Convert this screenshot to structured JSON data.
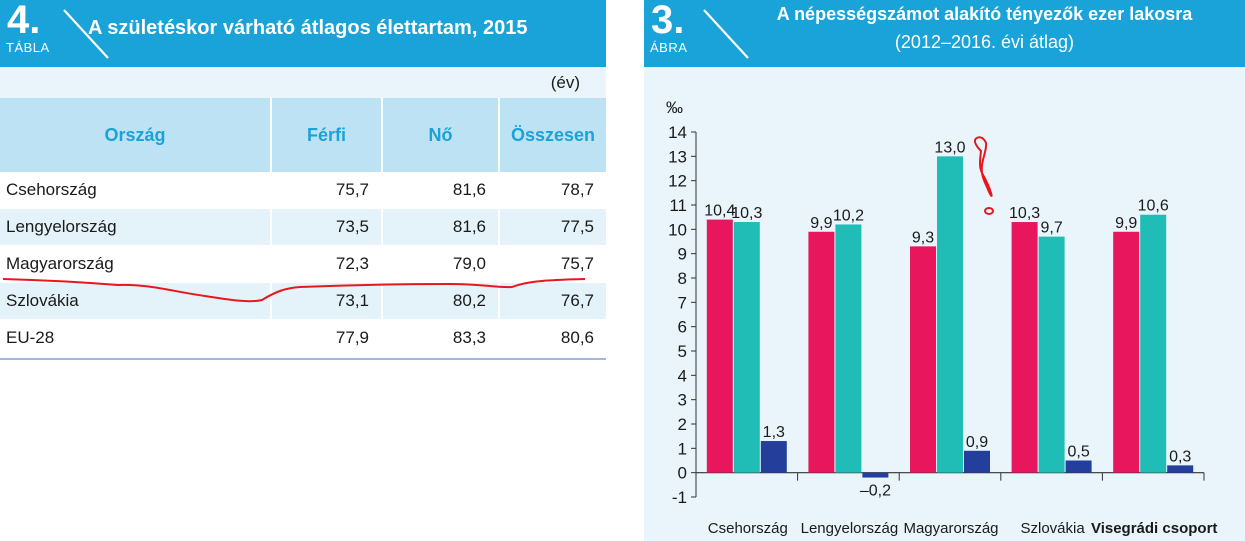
{
  "table": {
    "number": "4.",
    "label": "TÁBLA",
    "title": "A születéskor várható átlagos élettartam, 2015",
    "unit": "(év)",
    "headers": [
      "Ország",
      "Férfi",
      "Nő",
      "Összesen"
    ],
    "rows": [
      {
        "country": "Csehország",
        "male": "75,7",
        "female": "81,6",
        "total": "78,7"
      },
      {
        "country": "Lengyelország",
        "male": "73,5",
        "female": "81,6",
        "total": "77,5"
      },
      {
        "country": "Magyarország",
        "male": "72,3",
        "female": "79,0",
        "total": "75,7"
      },
      {
        "country": "Szlovákia",
        "male": "73,1",
        "female": "80,2",
        "total": "76,7"
      },
      {
        "country": "EU-28",
        "male": "77,9",
        "female": "83,3",
        "total": "80,6"
      }
    ]
  },
  "figure": {
    "number": "3.",
    "label": "ÁBRA",
    "title": "A népességszámot alakító tényezők ezer lakosra",
    "subtitle": "(2012–2016. évi átlag)"
  },
  "colors": {
    "banner": "#1aa3d8",
    "header_cell": "#bde2f3",
    "series1": "#e8175d",
    "series2": "#1fbdb5",
    "series3": "#243f9b",
    "annotation": "#e8171e"
  },
  "chart_data": {
    "type": "bar",
    "ylabel": "‰",
    "ylim": [
      -1,
      14
    ],
    "yticks": [
      "-1",
      "0",
      "1",
      "2",
      "3",
      "4",
      "5",
      "6",
      "7",
      "8",
      "9",
      "10",
      "11",
      "12",
      "13",
      "14"
    ],
    "categories": [
      "Csehország",
      "Lengyelország",
      "Magyarország",
      "Szlovákia",
      "Visegrádi csoport"
    ],
    "bold_category": "Visegrádi csoport",
    "series": [
      {
        "values": [
          10.4,
          9.9,
          9.3,
          10.3,
          9.9
        ],
        "labels": [
          "10,4",
          "9,9",
          "9,3",
          "10,3",
          "9,9"
        ]
      },
      {
        "values": [
          10.3,
          10.2,
          13.0,
          9.7,
          10.6
        ],
        "labels": [
          "10,3",
          "10,2",
          "13,0",
          "9,7",
          "10,6"
        ]
      },
      {
        "values": [
          1.3,
          -0.2,
          0.9,
          0.5,
          0.3
        ],
        "labels": [
          "1,3",
          "–0,2",
          "0,9",
          "0,5",
          "0,3"
        ]
      }
    ],
    "grid": false,
    "legend": "none"
  }
}
